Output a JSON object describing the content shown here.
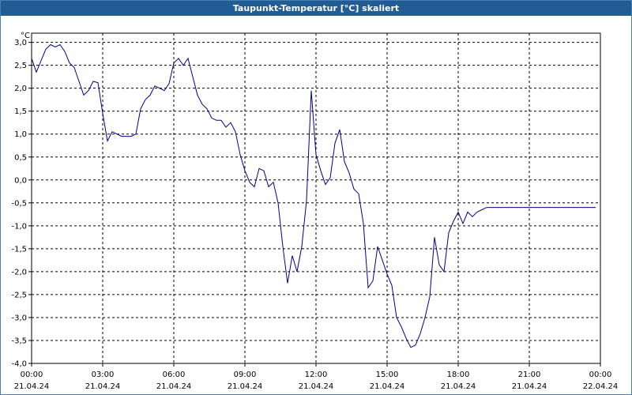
{
  "window": {
    "title": "Taupunkt-Temperatur [°C] skaliert"
  },
  "chart_data": {
    "type": "line",
    "title": "Taupunkt-Temperatur [°C] skaliert",
    "unit_label": "°C",
    "xlabel": "",
    "ylabel": "°C",
    "ylim": [
      -4.0,
      3.2
    ],
    "grid": true,
    "y_ticks": [
      "3,0",
      "2,5",
      "2,0",
      "1,5",
      "1,0",
      "0,5",
      "0,0",
      "-0,5",
      "-1,0",
      "-1,5",
      "-2,0",
      "-2,5",
      "-3,0",
      "-3,5",
      "-4,0"
    ],
    "x_ticks": [
      {
        "time": "00:00",
        "date": "21.04.24"
      },
      {
        "time": "03:00",
        "date": "21.04.24"
      },
      {
        "time": "06:00",
        "date": "21.04.24"
      },
      {
        "time": "09:00",
        "date": "21.04.24"
      },
      {
        "time": "12:00",
        "date": "21.04.24"
      },
      {
        "time": "15:00",
        "date": "21.04.24"
      },
      {
        "time": "18:00",
        "date": "21.04.24"
      },
      {
        "time": "21:00",
        "date": "21.04.24"
      },
      {
        "time": "00:00",
        "date": "22.04.24"
      }
    ],
    "x_unit": "hours",
    "xlim": [
      0,
      24
    ],
    "line_color": "#00008b",
    "series": [
      {
        "x": [
          0,
          0.2,
          0.4,
          0.6,
          0.8,
          1.0,
          1.2,
          1.4,
          1.6,
          1.8,
          2.0,
          2.2,
          2.4,
          2.6,
          2.8,
          3.0,
          3.2,
          3.4,
          3.6,
          3.8,
          4.0,
          4.2,
          4.4,
          4.6,
          4.8,
          5.0,
          5.2,
          5.4,
          5.6,
          5.8,
          6.0,
          6.2,
          6.4,
          6.6,
          6.8,
          7.0,
          7.2,
          7.4,
          7.6,
          7.8,
          8.0,
          8.2,
          8.4,
          8.6,
          8.8,
          9.0,
          9.2,
          9.4,
          9.6,
          9.8,
          10.0,
          10.2,
          10.4,
          10.6,
          10.8,
          11.0,
          11.2,
          11.4,
          11.6,
          11.8,
          12.0,
          12.2,
          12.4,
          12.6,
          12.8,
          13.0,
          13.2,
          13.4,
          13.6,
          13.8,
          14.0,
          14.2,
          14.4,
          14.6,
          14.8,
          15.0,
          15.2,
          15.4,
          15.6,
          15.8,
          16.0,
          16.2,
          16.4,
          16.6,
          16.8,
          17.0,
          17.2,
          17.4,
          17.6,
          17.8,
          18.0,
          18.2,
          18.4,
          18.6,
          18.8,
          19.0,
          19.2,
          19.4,
          19.6,
          19.8,
          20.0,
          20.2,
          20.4,
          20.6,
          20.8,
          21.0,
          21.2,
          21.4,
          21.6,
          21.8,
          22.0,
          22.2,
          22.4,
          22.6,
          22.8,
          23.0,
          23.2,
          23.4,
          23.6,
          23.8
        ],
        "y": [
          2.65,
          2.35,
          2.6,
          2.85,
          2.95,
          2.9,
          2.95,
          2.8,
          2.55,
          2.45,
          2.15,
          1.85,
          1.95,
          2.15,
          2.12,
          1.45,
          0.85,
          1.05,
          1.0,
          0.95,
          0.95,
          0.95,
          1.0,
          1.55,
          1.75,
          1.85,
          2.05,
          2.0,
          1.95,
          2.1,
          2.55,
          2.65,
          2.5,
          2.65,
          2.25,
          1.85,
          1.65,
          1.55,
          1.35,
          1.3,
          1.3,
          1.15,
          1.25,
          1.05,
          0.55,
          0.2,
          -0.05,
          -0.15,
          0.25,
          0.2,
          -0.15,
          -0.05,
          -0.5,
          -1.45,
          -2.25,
          -1.65,
          -2.0,
          -1.45,
          -0.45,
          1.95,
          0.55,
          0.2,
          -0.1,
          0.05,
          0.8,
          1.1,
          0.4,
          0.15,
          -0.2,
          -0.3,
          -0.95,
          -2.35,
          -2.2,
          -1.45,
          -1.75,
          -2.05,
          -2.3,
          -3.0,
          -3.2,
          -3.45,
          -3.65,
          -3.6,
          -3.35,
          -3.0,
          -2.55,
          -1.25,
          -1.85,
          -2.0,
          -1.15,
          -0.9,
          -0.7,
          -0.95,
          -0.7,
          -0.8,
          -0.7,
          -0.65,
          -0.6,
          -0.6,
          -0.6,
          -0.6,
          -0.6,
          -0.6,
          -0.6,
          -0.6,
          -0.6,
          -0.6,
          -0.6,
          -0.6,
          -0.6,
          -0.6,
          -0.6,
          -0.6,
          -0.6,
          -0.6,
          -0.6,
          -0.6,
          -0.6,
          -0.6,
          -0.6,
          -0.6
        ]
      }
    ]
  }
}
